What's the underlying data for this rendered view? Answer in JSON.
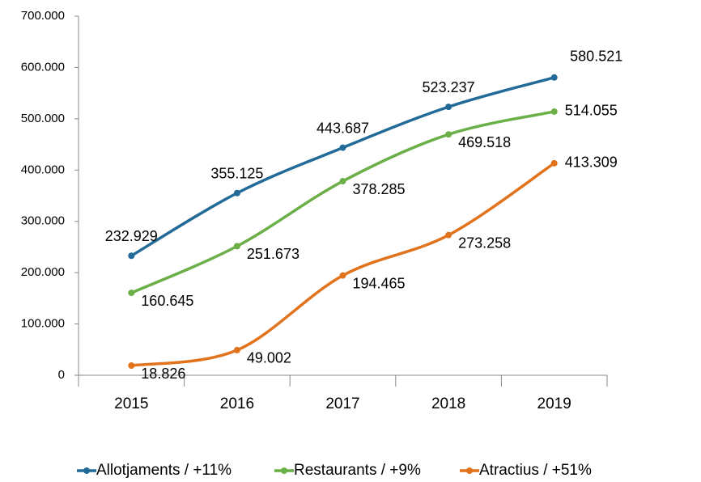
{
  "chart_data": {
    "type": "line",
    "categories": [
      "2015",
      "2016",
      "2017",
      "2018",
      "2019"
    ],
    "series": [
      {
        "name": "Allotjaments / +11%",
        "color": "#226b99",
        "values": [
          232929,
          355125,
          443687,
          523237,
          580521
        ],
        "value_labels": [
          "232.929",
          "355.125",
          "443.687",
          "523.237",
          "580.521"
        ]
      },
      {
        "name": "Restaurants / +9%",
        "color": "#6aaf47",
        "values": [
          160645,
          251673,
          378285,
          469518,
          514055
        ],
        "value_labels": [
          "160.645",
          "251.673",
          "378.285",
          "469.518",
          "514.055"
        ]
      },
      {
        "name": "Atractius / +51%",
        "color": "#e2731d",
        "values": [
          18826,
          49002,
          194465,
          273258,
          413309
        ],
        "value_labels": [
          "18.826",
          "49.002",
          "194.465",
          "273.258",
          "413.309"
        ]
      }
    ],
    "ylim": [
      0,
      700000
    ],
    "yticks": [
      0,
      {
        "value": 100000,
        "label": "100.000"
      },
      {
        "value": 200000,
        "label": "200.000"
      },
      {
        "value": 300000,
        "label": "300.000"
      },
      {
        "value": 400000,
        "label": "400.000"
      },
      {
        "value": 500000,
        "label": "500.000"
      },
      {
        "value": 600000,
        "label": "600.000"
      },
      {
        "value": 700000,
        "label": "700.000"
      }
    ],
    "legend": "bottom",
    "grid": false
  }
}
